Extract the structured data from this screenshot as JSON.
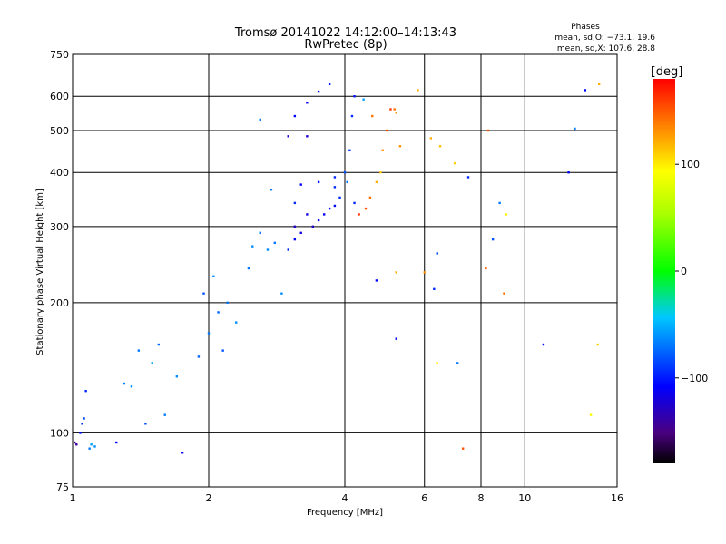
{
  "chart_data": {
    "type": "scatter",
    "title": "Tromsø 20141022 14:12:00–14:13:43",
    "subtitle": "RwPretec (8p)",
    "xlabel": "Frequency [MHz]",
    "ylabel": "Stationary phase Virtual Height [km]",
    "x_scale": "log",
    "y_scale": "log",
    "xlim": [
      1,
      16
    ],
    "ylim": [
      75,
      750
    ],
    "x_ticks": [
      1,
      2,
      4,
      6,
      8,
      10,
      16
    ],
    "x_tick_labels": [
      "1",
      "2",
      "4",
      "6",
      "8",
      "10",
      "16"
    ],
    "y_ticks": [
      75,
      100,
      200,
      300,
      400,
      500,
      600,
      750
    ],
    "y_tick_labels": [
      "75",
      "100",
      "200",
      "300",
      "400",
      "500",
      "600",
      "750"
    ],
    "grid": true,
    "stats": {
      "heading": "Phases",
      "o_line": "mean, sd,O: −73.1, 19.6",
      "x_line": "mean, sd,X: 107.6, 28.8"
    },
    "colorbar": {
      "label": "[deg]",
      "range": [
        -180,
        180
      ],
      "ticks": [
        100,
        0,
        -100
      ],
      "tick_labels": [
        "100",
        "0",
        "−100"
      ]
    },
    "series": [
      {
        "name": "Phases",
        "points": [
          [
            1.01,
            95,
            -150
          ],
          [
            1.02,
            94,
            -140
          ],
          [
            1.04,
            100,
            -110
          ],
          [
            1.05,
            105,
            -100
          ],
          [
            1.06,
            108,
            -90
          ],
          [
            1.07,
            125,
            -100
          ],
          [
            1.09,
            92,
            -80
          ],
          [
            1.1,
            94,
            -70
          ],
          [
            1.12,
            93,
            -75
          ],
          [
            1.25,
            95,
            -110
          ],
          [
            1.3,
            130,
            -80
          ],
          [
            1.35,
            128,
            -75
          ],
          [
            1.4,
            155,
            -80
          ],
          [
            1.45,
            105,
            -90
          ],
          [
            1.5,
            145,
            -70
          ],
          [
            1.55,
            160,
            -85
          ],
          [
            1.6,
            110,
            -80
          ],
          [
            1.7,
            135,
            -75
          ],
          [
            1.75,
            90,
            -110
          ],
          [
            1.9,
            150,
            -85
          ],
          [
            1.95,
            210,
            -90
          ],
          [
            2.0,
            170,
            -80
          ],
          [
            2.05,
            230,
            -75
          ],
          [
            2.1,
            190,
            -85
          ],
          [
            2.15,
            155,
            -90
          ],
          [
            2.2,
            200,
            -80
          ],
          [
            2.3,
            180,
            -75
          ],
          [
            2.45,
            240,
            -80
          ],
          [
            2.5,
            270,
            -75
          ],
          [
            2.6,
            290,
            -80
          ],
          [
            2.7,
            265,
            -75
          ],
          [
            2.8,
            275,
            -80
          ],
          [
            2.75,
            365,
            -80
          ],
          [
            2.9,
            210,
            -75
          ],
          [
            3.0,
            265,
            -100
          ],
          [
            3.1,
            280,
            -110
          ],
          [
            3.2,
            290,
            -120
          ],
          [
            3.1,
            340,
            -100
          ],
          [
            3.2,
            375,
            -110
          ],
          [
            3.3,
            320,
            -120
          ],
          [
            3.4,
            300,
            -125
          ],
          [
            3.5,
            310,
            -120
          ],
          [
            3.6,
            320,
            -115
          ],
          [
            3.7,
            330,
            -110
          ],
          [
            3.8,
            335,
            -110
          ],
          [
            3.9,
            350,
            -100
          ],
          [
            3.5,
            380,
            -105
          ],
          [
            3.8,
            390,
            -100
          ],
          [
            4.0,
            400,
            -90
          ],
          [
            4.1,
            450,
            -95
          ],
          [
            4.15,
            540,
            -100
          ],
          [
            4.2,
            600,
            -105
          ],
          [
            4.05,
            380,
            -80
          ],
          [
            4.2,
            340,
            -100
          ],
          [
            4.3,
            320,
            160
          ],
          [
            4.45,
            330,
            150
          ],
          [
            4.55,
            350,
            140
          ],
          [
            4.7,
            380,
            120
          ],
          [
            4.8,
            400,
            110
          ],
          [
            4.85,
            450,
            130
          ],
          [
            4.95,
            500,
            150
          ],
          [
            5.05,
            560,
            160
          ],
          [
            5.15,
            560,
            140
          ],
          [
            5.3,
            460,
            130
          ],
          [
            4.4,
            590,
            -70
          ],
          [
            4.6,
            540,
            140
          ],
          [
            3.1,
            540,
            -110
          ],
          [
            3.3,
            580,
            -115
          ],
          [
            3.5,
            615,
            -110
          ],
          [
            3.7,
            640,
            -105
          ],
          [
            3.0,
            485,
            -120
          ],
          [
            3.3,
            485,
            -125
          ],
          [
            2.6,
            530,
            -80
          ],
          [
            3.1,
            300,
            -125
          ],
          [
            3.8,
            370,
            -100
          ],
          [
            5.2,
            550,
            130
          ],
          [
            5.8,
            620,
            120
          ],
          [
            6.2,
            480,
            120
          ],
          [
            6.5,
            460,
            115
          ],
          [
            7.0,
            420,
            110
          ],
          [
            7.5,
            390,
            -100
          ],
          [
            8.3,
            500,
            150
          ],
          [
            8.8,
            340,
            -80
          ],
          [
            9.1,
            320,
            100
          ],
          [
            8.5,
            280,
            -90
          ],
          [
            8.2,
            240,
            150
          ],
          [
            7.1,
            145,
            -80
          ],
          [
            7.3,
            92,
            150
          ],
          [
            9.0,
            210,
            140
          ],
          [
            11.0,
            160,
            -110
          ],
          [
            12.5,
            400,
            -110
          ],
          [
            14.5,
            160,
            110
          ],
          [
            14.0,
            110,
            90
          ],
          [
            14.6,
            640,
            120
          ],
          [
            13.6,
            620,
            -110
          ],
          [
            12.9,
            505,
            -80
          ],
          [
            6.4,
            260,
            -90
          ],
          [
            6.0,
            235,
            130
          ],
          [
            5.2,
            235,
            120
          ],
          [
            5.2,
            165,
            -110
          ],
          [
            4.7,
            225,
            -110
          ],
          [
            6.3,
            215,
            -100
          ],
          [
            6.4,
            145,
            100
          ]
        ]
      }
    ]
  }
}
